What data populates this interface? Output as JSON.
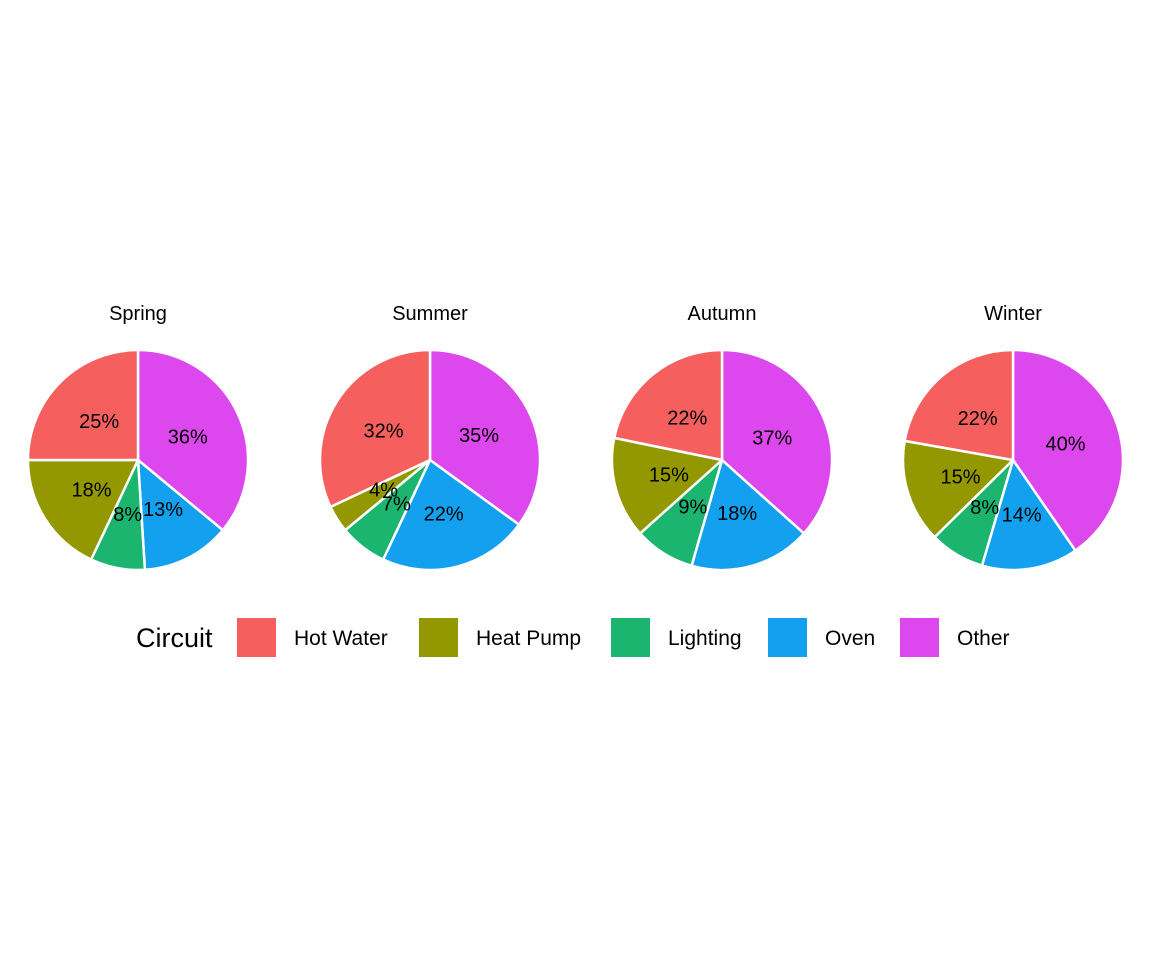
{
  "chart_data": {
    "type": "pie",
    "legend": {
      "title": "Circuit",
      "placement": "bottom",
      "entries": [
        {
          "name": "Hot Water",
          "color": "#F8766D"
        },
        {
          "name": "Heat Pump",
          "color": "#A3A500"
        },
        {
          "name": "Lighting",
          "color": "#00BF7D"
        },
        {
          "name": "Oven",
          "color": "#00B0F6"
        },
        {
          "name": "Other",
          "color": "#E76BF3"
        }
      ]
    },
    "slice_colors_rendered": [
      "#F5605E",
      "#939800",
      "#1CB56F",
      "#12A0EF",
      "#DC48EE"
    ],
    "categories": [
      "Hot Water",
      "Heat Pump",
      "Lighting",
      "Oven",
      "Other"
    ],
    "facets": [
      {
        "title": "Spring",
        "values": [
          25,
          18,
          8,
          13,
          36
        ],
        "labels": [
          "25%",
          "18%",
          "8%",
          "13%",
          "36%"
        ]
      },
      {
        "title": "Summer",
        "values": [
          32,
          4,
          7,
          22,
          35
        ],
        "labels": [
          "32%",
          "4%",
          "7%",
          "22%",
          "35%"
        ]
      },
      {
        "title": "Autumn",
        "values": [
          22,
          15,
          9,
          18,
          37
        ],
        "labels": [
          "22%",
          "15%",
          "9%",
          "18%",
          "37%"
        ]
      },
      {
        "title": "Winter",
        "values": [
          22,
          15,
          8,
          14,
          40
        ],
        "labels": [
          "22%",
          "15%",
          "8%",
          "14%",
          "40%"
        ]
      }
    ]
  }
}
